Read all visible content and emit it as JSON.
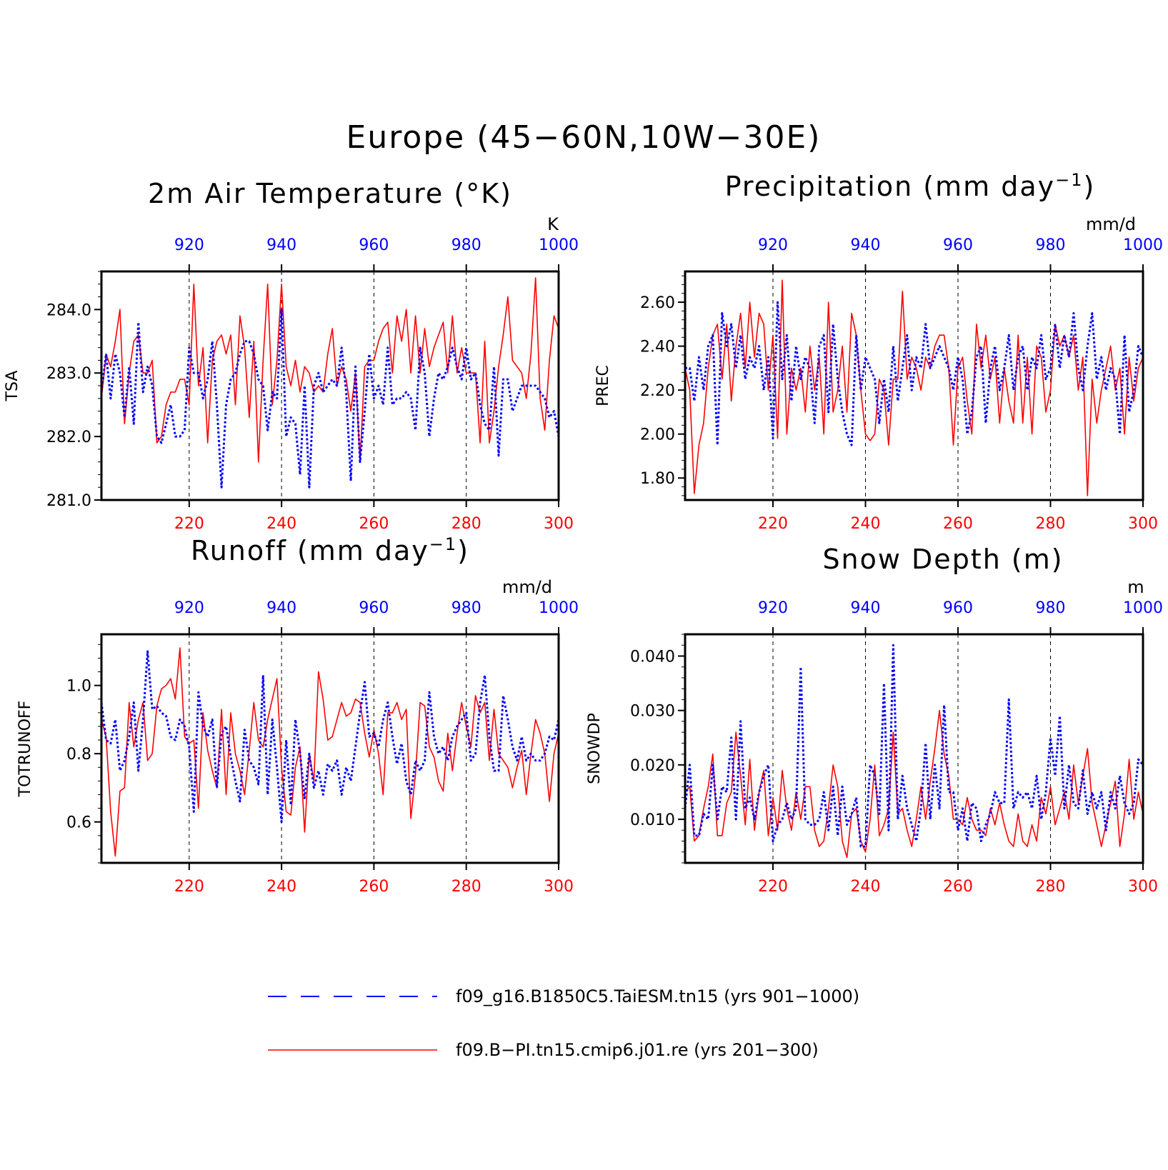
{
  "figure_title": "Europe (45−60N,10W−30E)",
  "colors": {
    "series_blue": "#0000ff",
    "series_red": "#ff0000",
    "axis": "#000000"
  },
  "legend": [
    {
      "label": "f09_g16.B1850C5.TaiESM.tn15 (yrs 901−1000)",
      "color": "#0000ff",
      "style": "dashed"
    },
    {
      "label": "f09.B−PI.tn15.cmip6.j01.re (yrs 201−300)",
      "color": "#ff0000",
      "style": "solid"
    }
  ],
  "chart_data": [
    {
      "type": "line",
      "title": "2m Air Temperature (°K)",
      "ylabel": "TSA",
      "unit": "K",
      "ylim": [
        281.0,
        284.6
      ],
      "yticks": [
        "281.0",
        "282.0",
        "283.0",
        "284.0"
      ],
      "ytick_values": [
        281.0,
        282.0,
        283.0,
        284.0
      ],
      "bottom_xlim": [
        201,
        300
      ],
      "bottom_ticks": [
        "220",
        "240",
        "260",
        "280",
        "300"
      ],
      "top_xlim": [
        901,
        1000
      ],
      "top_ticks": [
        "920",
        "940",
        "960",
        "980",
        "1000"
      ],
      "vlines": [
        220,
        240,
        260,
        280
      ],
      "series": [
        {
          "color": "#ff0000",
          "style": "solid",
          "x_start": 201,
          "values": [
            282.6,
            283.3,
            283.1,
            283.5,
            284.0,
            282.2,
            283.0,
            283.5,
            283.6,
            283.0,
            283.0,
            283.2,
            281.9,
            282.0,
            282.5,
            282.7,
            282.7,
            282.9,
            282.9,
            282.5,
            284.4,
            282.8,
            283.4,
            281.9,
            283.2,
            283.5,
            283.6,
            283.3,
            283.6,
            282.5,
            283.9,
            283.4,
            282.3,
            283.5,
            281.6,
            283.2,
            284.4,
            282.5,
            283.2,
            284.4,
            283.1,
            282.8,
            283.2,
            282.7,
            283.1,
            283.0,
            282.7,
            282.8,
            282.7,
            283.3,
            283.7,
            282.8,
            283.1,
            282.9,
            282.4,
            283.0,
            281.6,
            283.1,
            283.2,
            283.2,
            283.5,
            283.7,
            283.8,
            283.0,
            283.9,
            283.5,
            284.0,
            283.0,
            283.9,
            283.0,
            283.7,
            283.1,
            283.4,
            283.6,
            283.8,
            283.0,
            283.9,
            283.0,
            283.4,
            283.0,
            283.0,
            283.0,
            281.9,
            283.5,
            281.9,
            282.4,
            283.1,
            283.6,
            284.2,
            283.2,
            283.1,
            283.0,
            282.6,
            283.3,
            284.5,
            282.6,
            282.1,
            283.2,
            283.9,
            283.7
          ]
        },
        {
          "color": "#0000ff",
          "style": "dashed",
          "x_start": 901,
          "values": [
            282.7,
            283.3,
            282.6,
            283.3,
            283.0,
            282.3,
            283.1,
            282.2,
            283.8,
            282.7,
            283.1,
            282.8,
            282.0,
            281.9,
            282.2,
            282.5,
            282.0,
            282.0,
            282.1,
            283.4,
            283.0,
            283.0,
            282.6,
            282.9,
            283.5,
            282.5,
            281.2,
            282.5,
            282.9,
            283.0,
            283.3,
            283.5,
            283.5,
            283.3,
            282.9,
            282.8,
            282.1,
            282.7,
            282.6,
            284.0,
            282.0,
            282.3,
            282.2,
            281.4,
            282.8,
            281.2,
            282.8,
            283.0,
            282.7,
            282.8,
            282.9,
            282.8,
            283.4,
            282.7,
            281.3,
            283.1,
            281.6,
            282.4,
            283.3,
            282.6,
            282.8,
            282.5,
            283.4,
            282.5,
            282.6,
            282.6,
            282.7,
            282.6,
            282.1,
            283.4,
            283.0,
            282.0,
            282.6,
            283.0,
            282.9,
            283.1,
            283.4,
            283.1,
            282.9,
            283.4,
            282.9,
            283.0,
            282.5,
            282.2,
            282.1,
            283.1,
            281.7,
            282.9,
            282.9,
            282.4,
            282.6,
            282.8,
            282.8,
            282.8,
            282.8,
            282.7,
            282.6,
            282.3,
            282.4,
            282.0
          ]
        }
      ]
    },
    {
      "type": "line",
      "title": "Precipitation (mm day",
      "title_superscript": "−1",
      "title_suffix": ")",
      "ylabel": "PREC",
      "unit": "mm/d",
      "ylim": [
        1.7,
        2.74
      ],
      "yticks": [
        "1.80",
        "2.00",
        "2.20",
        "2.40",
        "2.60"
      ],
      "ytick_values": [
        1.8,
        2.0,
        2.2,
        2.4,
        2.6
      ],
      "bottom_xlim": [
        201,
        300
      ],
      "bottom_ticks": [
        "220",
        "240",
        "260",
        "280",
        "300"
      ],
      "top_xlim": [
        901,
        1000
      ],
      "top_ticks": [
        "920",
        "940",
        "960",
        "980",
        "1000"
      ],
      "vlines": [
        220,
        240,
        260,
        280
      ],
      "series": [
        {
          "color": "#ff0000",
          "style": "solid",
          "x_start": 201,
          "values": [
            2.3,
            2.2,
            1.73,
            1.95,
            2.05,
            2.3,
            2.45,
            2.5,
            2.25,
            2.5,
            2.15,
            2.4,
            2.55,
            2.3,
            2.6,
            2.35,
            2.55,
            2.5,
            2.2,
            2.45,
            1.98,
            2.7,
            2.0,
            2.3,
            2.2,
            2.3,
            2.1,
            2.4,
            2.2,
            2.35,
            2.0,
            2.6,
            2.1,
            2.2,
            2.4,
            2.1,
            2.55,
            2.45,
            2.2,
            2.0,
            1.97,
            2.0,
            2.25,
            2.2,
            1.95,
            2.25,
            2.25,
            2.65,
            2.25,
            2.35,
            2.3,
            2.2,
            2.35,
            2.3,
            2.4,
            2.45,
            2.45,
            2.3,
            1.95,
            2.3,
            2.35,
            2.15,
            2.0,
            2.5,
            2.3,
            2.45,
            2.25,
            2.35,
            2.05,
            2.3,
            2.15,
            2.05,
            2.45,
            2.05,
            2.35,
            2.0,
            2.4,
            2.35,
            2.1,
            2.2,
            2.5,
            2.4,
            2.45,
            2.35,
            2.45,
            2.2,
            2.35,
            1.72,
            2.25,
            2.05,
            2.2,
            2.3,
            2.4,
            2.2,
            2.3,
            2.0,
            2.35,
            2.15,
            2.3,
            2.35
          ]
        },
        {
          "color": "#0000ff",
          "style": "dashed",
          "x_start": 901,
          "values": [
            2.3,
            2.3,
            2.15,
            2.35,
            2.2,
            2.4,
            2.45,
            1.95,
            2.55,
            2.4,
            2.5,
            2.3,
            2.45,
            2.25,
            2.35,
            2.3,
            2.4,
            2.2,
            2.35,
            1.98,
            2.6,
            2.25,
            2.45,
            2.15,
            2.4,
            2.25,
            2.35,
            2.3,
            2.05,
            2.4,
            2.45,
            2.1,
            2.5,
            2.25,
            2.1,
            2.0,
            1.95,
            2.45,
            2.2,
            2.35,
            2.3,
            2.25,
            2.05,
            2.25,
            2.1,
            2.4,
            2.15,
            2.3,
            2.45,
            2.2,
            2.35,
            2.3,
            2.5,
            2.3,
            2.35,
            2.4,
            2.35,
            2.3,
            2.2,
            2.35,
            2.25,
            2.0,
            2.1,
            2.35,
            2.4,
            2.05,
            2.3,
            2.4,
            2.2,
            2.3,
            2.45,
            2.2,
            2.35,
            2.4,
            2.2,
            2.35,
            2.3,
            2.45,
            2.25,
            2.3,
            2.5,
            2.3,
            2.45,
            2.35,
            2.55,
            2.3,
            2.2,
            2.4,
            2.55,
            2.25,
            2.35,
            2.2,
            2.3,
            2.25,
            2.0,
            2.45,
            2.1,
            2.2,
            2.4,
            2.35
          ]
        }
      ]
    },
    {
      "type": "line",
      "title": "Runoff (mm day",
      "title_superscript": "−1",
      "title_suffix": ")",
      "ylabel": "TOTRUNOFF",
      "unit": "mm/d",
      "ylim": [
        0.48,
        1.15
      ],
      "yticks": [
        "0.6",
        "0.8",
        "1.0"
      ],
      "ytick_values": [
        0.6,
        0.8,
        1.0
      ],
      "bottom_xlim": [
        201,
        300
      ],
      "bottom_ticks": [
        "220",
        "240",
        "260",
        "280",
        "300"
      ],
      "top_xlim": [
        901,
        1000
      ],
      "top_ticks": [
        "920",
        "940",
        "960",
        "980",
        "1000"
      ],
      "vlines": [
        220,
        240,
        260,
        280
      ],
      "series": [
        {
          "color": "#ff0000",
          "style": "solid",
          "x_start": 201,
          "values": [
            0.9,
            0.85,
            0.63,
            0.5,
            0.69,
            0.7,
            0.95,
            0.82,
            0.9,
            0.95,
            0.78,
            0.8,
            0.94,
            0.99,
            1.0,
            1.02,
            0.96,
            1.11,
            0.85,
            0.83,
            0.84,
            0.64,
            0.92,
            0.81,
            0.75,
            0.7,
            0.93,
            0.68,
            0.92,
            0.8,
            0.75,
            0.68,
            0.81,
            0.95,
            0.84,
            0.82,
            0.9,
            0.96,
            1.02,
            0.76,
            0.63,
            0.62,
            0.76,
            0.82,
            0.57,
            0.8,
            0.72,
            1.04,
            0.96,
            0.84,
            0.85,
            0.9,
            0.95,
            0.91,
            0.92,
            0.96,
            0.95,
            0.86,
            0.79,
            0.87,
            0.8,
            0.68,
            0.92,
            0.92,
            0.95,
            0.9,
            0.93,
            0.61,
            0.74,
            0.95,
            0.94,
            0.82,
            0.79,
            0.72,
            0.69,
            0.86,
            0.75,
            0.86,
            0.95,
            0.88,
            0.82,
            0.97,
            0.92,
            0.95,
            0.78,
            0.93,
            0.8,
            0.78,
            0.76,
            0.7,
            0.76,
            0.81,
            0.68,
            0.8,
            0.9,
            0.86,
            0.8,
            0.66,
            0.8,
            0.86
          ]
        },
        {
          "color": "#0000ff",
          "style": "dashed",
          "x_start": 901,
          "values": [
            0.95,
            0.84,
            0.83,
            0.9,
            0.75,
            0.78,
            0.85,
            0.95,
            0.75,
            0.9,
            1.1,
            0.93,
            0.94,
            0.92,
            0.91,
            0.85,
            0.84,
            0.9,
            0.88,
            0.82,
            0.63,
            0.98,
            0.88,
            0.85,
            0.9,
            0.7,
            0.86,
            0.88,
            0.79,
            0.72,
            0.66,
            0.87,
            0.78,
            0.76,
            0.71,
            1.03,
            0.68,
            0.9,
            0.76,
            0.6,
            0.84,
            0.65,
            0.9,
            0.8,
            0.67,
            0.8,
            0.7,
            0.75,
            0.68,
            0.77,
            0.75,
            0.78,
            0.68,
            0.76,
            0.72,
            0.82,
            0.92,
            1.01,
            0.85,
            0.86,
            0.82,
            0.9,
            0.95,
            0.85,
            0.77,
            0.83,
            0.72,
            0.68,
            0.78,
            0.75,
            0.78,
            0.98,
            0.85,
            0.8,
            0.82,
            0.78,
            0.85,
            0.88,
            0.9,
            0.92,
            0.78,
            0.8,
            0.95,
            1.03,
            0.85,
            0.75,
            0.75,
            0.97,
            0.9,
            0.82,
            0.78,
            0.85,
            0.78,
            0.8,
            0.78,
            0.78,
            0.8,
            0.85,
            0.84,
            0.9
          ]
        }
      ]
    },
    {
      "type": "line",
      "title": "Snow Depth (m)",
      "ylabel": "SNOWDP",
      "unit": "m",
      "ylim": [
        0.002,
        0.044
      ],
      "yticks": [
        "0.010",
        "0.020",
        "0.030",
        "0.040"
      ],
      "ytick_values": [
        0.01,
        0.02,
        0.03,
        0.04
      ],
      "bottom_xlim": [
        201,
        300
      ],
      "bottom_ticks": [
        "220",
        "240",
        "260",
        "280",
        "300"
      ],
      "top_xlim": [
        901,
        1000
      ],
      "top_ticks": [
        "920",
        "940",
        "960",
        "980",
        "1000"
      ],
      "vlines": [
        220,
        240,
        260,
        280
      ],
      "series": [
        {
          "color": "#ff0000",
          "style": "solid",
          "x_start": 201,
          "values": [
            0.015,
            0.016,
            0.006,
            0.007,
            0.012,
            0.016,
            0.022,
            0.007,
            0.007,
            0.013,
            0.015,
            0.026,
            0.018,
            0.009,
            0.021,
            0.008,
            0.015,
            0.019,
            0.007,
            0.014,
            0.008,
            0.019,
            0.012,
            0.008,
            0.015,
            0.01,
            0.016,
            0.016,
            0.008,
            0.005,
            0.006,
            0.012,
            0.02,
            0.016,
            0.006,
            0.003,
            0.011,
            0.012,
            0.006,
            0.004,
            0.01,
            0.02,
            0.007,
            0.009,
            0.012,
            0.026,
            0.011,
            0.012,
            0.008,
            0.005,
            0.01,
            0.016,
            0.01,
            0.017,
            0.023,
            0.03,
            0.022,
            0.018,
            0.01,
            0.01,
            0.009,
            0.014,
            0.01,
            0.008,
            0.008,
            0.007,
            0.012,
            0.009,
            0.013,
            0.009,
            0.006,
            0.005,
            0.011,
            0.006,
            0.005,
            0.009,
            0.006,
            0.014,
            0.011,
            0.016,
            0.009,
            0.012,
            0.015,
            0.01,
            0.02,
            0.013,
            0.018,
            0.023,
            0.013,
            0.009,
            0.005,
            0.009,
            0.013,
            0.017,
            0.005,
            0.011,
            0.021,
            0.01,
            0.015,
            0.011
          ]
        },
        {
          "color": "#0000ff",
          "style": "dashed",
          "x_start": 901,
          "values": [
            0.012,
            0.02,
            0.007,
            0.007,
            0.011,
            0.01,
            0.02,
            0.01,
            0.016,
            0.015,
            0.025,
            0.01,
            0.028,
            0.012,
            0.014,
            0.01,
            0.015,
            0.018,
            0.02,
            0.006,
            0.009,
            0.01,
            0.013,
            0.01,
            0.012,
            0.038,
            0.01,
            0.009,
            0.009,
            0.01,
            0.015,
            0.008,
            0.016,
            0.007,
            0.016,
            0.009,
            0.011,
            0.014,
            0.005,
            0.005,
            0.02,
            0.018,
            0.011,
            0.035,
            0.008,
            0.042,
            0.01,
            0.018,
            0.012,
            0.009,
            0.006,
            0.012,
            0.024,
            0.01,
            0.02,
            0.012,
            0.031,
            0.015,
            0.015,
            0.008,
            0.012,
            0.006,
            0.013,
            0.012,
            0.006,
            0.009,
            0.011,
            0.015,
            0.013,
            0.013,
            0.032,
            0.012,
            0.015,
            0.014,
            0.015,
            0.012,
            0.018,
            0.01,
            0.015,
            0.025,
            0.018,
            0.029,
            0.012,
            0.02,
            0.013,
            0.012,
            0.019,
            0.011,
            0.015,
            0.012,
            0.015,
            0.008,
            0.015,
            0.012,
            0.018,
            0.013,
            0.011,
            0.013,
            0.021,
            0.02
          ]
        }
      ]
    }
  ]
}
